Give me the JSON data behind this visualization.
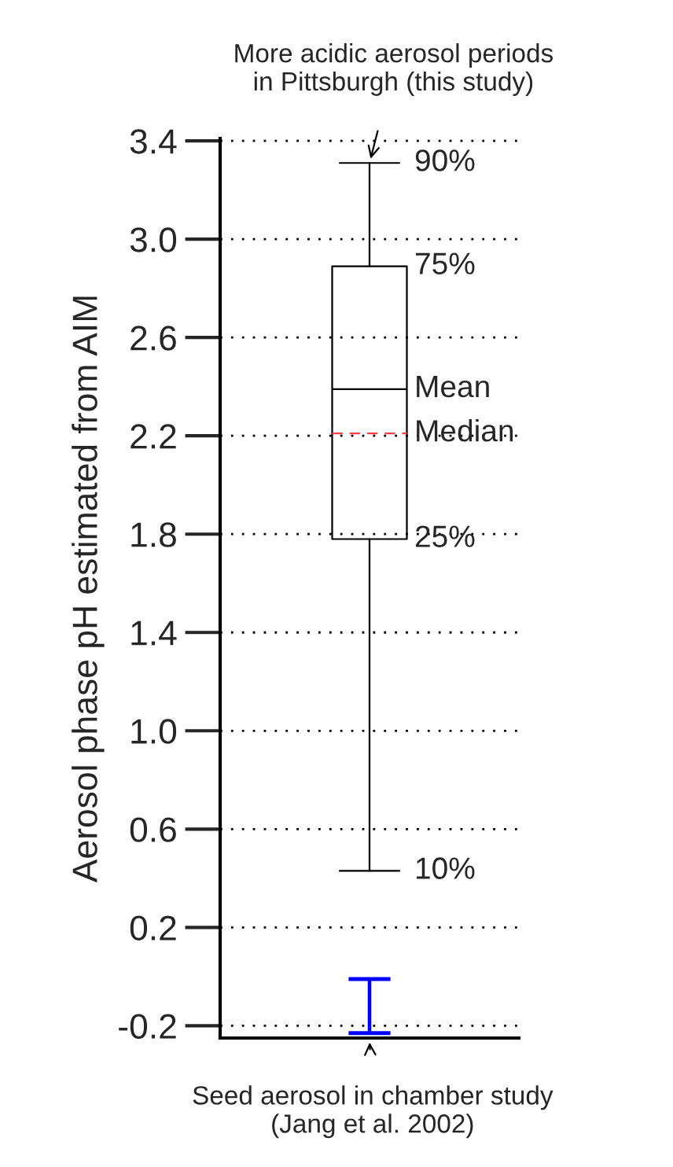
{
  "chart_data": {
    "type": "box",
    "ylabel": "Aerosol phase pH estimated from AIM",
    "categories": [
      null
    ],
    "series": [
      {
        "color": "#000000",
        "boxes": [
          {
            "low": 0.43,
            "q1": 1.78,
            "median": 2.21,
            "q3": 2.89,
            "high": 3.31,
            "mean": 2.39
          }
        ]
      },
      {
        "type": "bar",
        "color": "#0000ff",
        "base": [
          -0.23
        ],
        "values": [
          0.22
        ]
      }
    ],
    "ylim": [
      -0.25,
      3.41
    ],
    "yticks": [
      {
        "value": -0.2,
        "label": "-0.2"
      },
      0.2,
      0.6,
      {
        "value": 1.0,
        "label": "1.0"
      },
      1.4,
      1.8,
      2.2,
      2.6,
      {
        "value": 3.0,
        "label": "3.0"
      },
      3.4
    ],
    "grid": "y",
    "tick_labels": "y",
    "annotations": [
      "More acidic aerosol periods\nin Pittsburgh (this study)",
      "Seed aerosol in chamber study\n(Jang et al. 2002)",
      "90%",
      "75%",
      "Mean",
      "Median",
      "25%",
      "10%"
    ]
  }
}
